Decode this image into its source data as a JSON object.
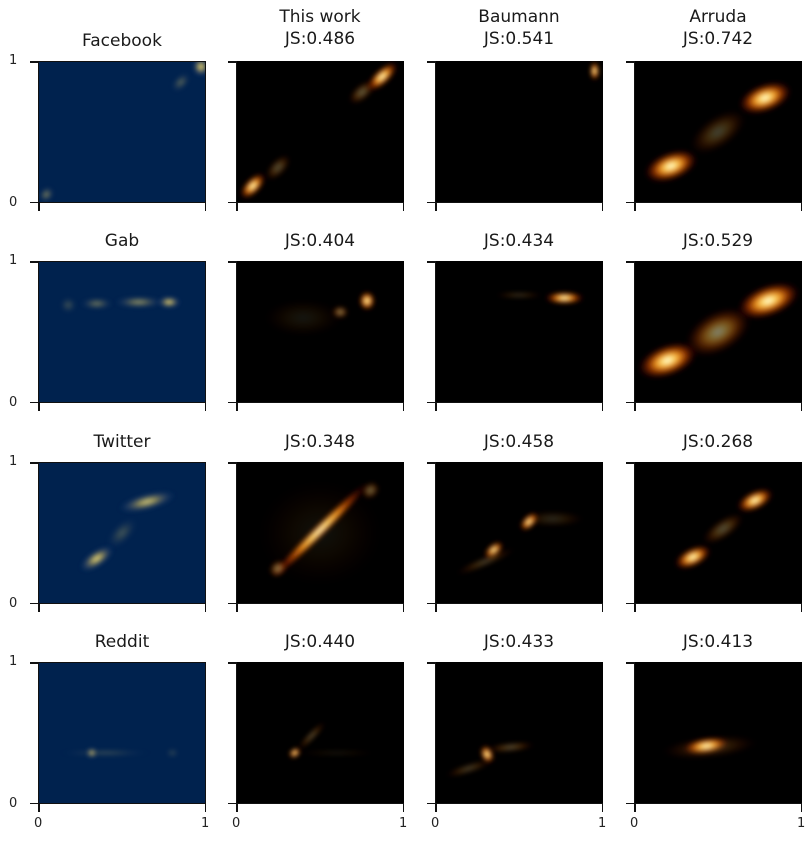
{
  "chart_data": [
    {
      "type": "heatmap",
      "row": "Facebook",
      "model": "data",
      "title": "Facebook",
      "title2": "",
      "colormap": "cividis",
      "blobs": [
        [
          0.97,
          0.96,
          0.05,
          0.06,
          0.0,
          1.0
        ],
        [
          0.85,
          0.85,
          0.07,
          0.04,
          0.8,
          0.35
        ],
        [
          0.05,
          0.06,
          0.05,
          0.04,
          0.8,
          0.5
        ]
      ]
    },
    {
      "type": "heatmap",
      "row": "Facebook",
      "model": "This work",
      "title": "This work",
      "title2": "JS:0.486",
      "colormap": "afmhot",
      "blobs": [
        [
          0.87,
          0.89,
          0.12,
          0.05,
          0.75,
          1.0
        ],
        [
          0.1,
          0.12,
          0.1,
          0.05,
          0.8,
          1.0
        ],
        [
          0.75,
          0.78,
          0.1,
          0.05,
          0.7,
          0.35
        ],
        [
          0.25,
          0.25,
          0.1,
          0.05,
          0.8,
          0.3
        ]
      ]
    },
    {
      "type": "heatmap",
      "row": "Facebook",
      "model": "Baumann",
      "title": "Baumann",
      "title2": "JS:0.541",
      "colormap": "afmhot",
      "blobs": [
        [
          0.95,
          0.93,
          0.03,
          0.06,
          0.0,
          1.0
        ]
      ]
    },
    {
      "type": "heatmap",
      "row": "Facebook",
      "model": "Arruda",
      "title": "Arruda",
      "title2": "JS:0.742",
      "colormap": "afmhot",
      "blobs": [
        [
          0.22,
          0.26,
          0.17,
          0.09,
          0.35,
          1.0
        ],
        [
          0.78,
          0.74,
          0.17,
          0.09,
          0.35,
          1.0
        ],
        [
          0.5,
          0.5,
          0.2,
          0.1,
          0.6,
          0.25
        ]
      ]
    },
    {
      "type": "heatmap",
      "row": "Gab",
      "model": "data",
      "title": "Gab",
      "title2": "",
      "colormap": "cividis",
      "blobs": [
        [
          0.78,
          0.71,
          0.07,
          0.035,
          0.0,
          1.0
        ],
        [
          0.6,
          0.71,
          0.15,
          0.035,
          0.0,
          0.6
        ],
        [
          0.35,
          0.7,
          0.1,
          0.035,
          0.0,
          0.45
        ],
        [
          0.18,
          0.69,
          0.05,
          0.05,
          0.0,
          0.25
        ]
      ]
    },
    {
      "type": "heatmap",
      "row": "Gab",
      "model": "This work",
      "title": "This work",
      "title2": "JS:0.404",
      "colormap": "afmhot",
      "blobs": [
        [
          0.78,
          0.72,
          0.05,
          0.06,
          0.0,
          1.0
        ],
        [
          0.62,
          0.64,
          0.05,
          0.04,
          0.0,
          0.5
        ],
        [
          0.4,
          0.6,
          0.25,
          0.12,
          0.0,
          0.08
        ]
      ]
    },
    {
      "type": "heatmap",
      "row": "Gab",
      "model": "Baumann",
      "title": "Baumann",
      "title2": "JS:0.434",
      "colormap": "afmhot",
      "blobs": [
        [
          0.77,
          0.74,
          0.12,
          0.04,
          0.0,
          1.0
        ],
        [
          0.5,
          0.76,
          0.15,
          0.02,
          0.0,
          0.2
        ]
      ]
    },
    {
      "type": "heatmap",
      "row": "Gab",
      "model": "Arruda",
      "title": "Arruda",
      "title2": "JS:0.529",
      "colormap": "afmhot",
      "blobs": [
        [
          0.2,
          0.3,
          0.19,
          0.1,
          0.35,
          1.0
        ],
        [
          0.8,
          0.72,
          0.2,
          0.1,
          0.35,
          1.0
        ],
        [
          0.5,
          0.5,
          0.22,
          0.13,
          0.5,
          0.5
        ]
      ]
    },
    {
      "type": "heatmap",
      "row": "Twitter",
      "model": "data",
      "title": "Twitter",
      "title2": "",
      "colormap": "cividis",
      "blobs": [
        [
          0.35,
          0.32,
          0.12,
          0.05,
          0.6,
          0.95
        ],
        [
          0.65,
          0.72,
          0.18,
          0.05,
          0.25,
          0.85
        ],
        [
          0.5,
          0.5,
          0.12,
          0.06,
          0.8,
          0.25
        ]
      ]
    },
    {
      "type": "heatmap",
      "row": "Twitter",
      "model": "This work",
      "title": "This work",
      "title2": "JS:0.348",
      "colormap": "afmhot",
      "blobs": [
        [
          0.5,
          0.52,
          0.42,
          0.04,
          0.78,
          1.0
        ],
        [
          0.25,
          0.25,
          0.06,
          0.05,
          0.7,
          0.5
        ],
        [
          0.8,
          0.8,
          0.06,
          0.05,
          0.7,
          0.4
        ],
        [
          0.5,
          0.5,
          0.4,
          0.35,
          0.0,
          0.06
        ]
      ]
    },
    {
      "type": "heatmap",
      "row": "Twitter",
      "model": "Baumann",
      "title": "Baumann",
      "title2": "JS:0.458",
      "colormap": "afmhot",
      "blobs": [
        [
          0.56,
          0.58,
          0.07,
          0.04,
          0.78,
          1.0
        ],
        [
          0.35,
          0.38,
          0.07,
          0.04,
          0.7,
          0.95
        ],
        [
          0.3,
          0.3,
          0.2,
          0.03,
          0.4,
          0.25
        ],
        [
          0.7,
          0.6,
          0.2,
          0.05,
          0.0,
          0.15
        ]
      ]
    },
    {
      "type": "heatmap",
      "row": "Twitter",
      "model": "Arruda",
      "title": "Arruda",
      "title2": "JS:0.268",
      "colormap": "afmhot",
      "blobs": [
        [
          0.35,
          0.33,
          0.12,
          0.06,
          0.45,
          1.0
        ],
        [
          0.72,
          0.73,
          0.12,
          0.06,
          0.45,
          1.0
        ],
        [
          0.53,
          0.53,
          0.15,
          0.06,
          0.6,
          0.3
        ]
      ]
    },
    {
      "type": "heatmap",
      "row": "Reddit",
      "model": "data",
      "title": "Reddit",
      "title2": "",
      "colormap": "cividis",
      "blobs": [
        [
          0.32,
          0.36,
          0.03,
          0.03,
          0.0,
          1.0
        ],
        [
          0.4,
          0.36,
          0.28,
          0.02,
          0.0,
          0.25
        ],
        [
          0.8,
          0.36,
          0.04,
          0.03,
          0.0,
          0.2
        ]
      ]
    },
    {
      "type": "heatmap",
      "row": "Reddit",
      "model": "This work",
      "title": "This work",
      "title2": "JS:0.440",
      "colormap": "afmhot",
      "blobs": [
        [
          0.35,
          0.36,
          0.04,
          0.03,
          0.6,
          1.0
        ],
        [
          0.45,
          0.48,
          0.12,
          0.025,
          0.8,
          0.3
        ],
        [
          0.6,
          0.36,
          0.25,
          0.02,
          0.0,
          0.08
        ]
      ]
    },
    {
      "type": "heatmap",
      "row": "Reddit",
      "model": "Baumann",
      "title": "Baumann",
      "title2": "JS:0.433",
      "colormap": "afmhot",
      "blobs": [
        [
          0.31,
          0.35,
          0.04,
          0.06,
          0.4,
          1.0
        ],
        [
          0.45,
          0.4,
          0.15,
          0.03,
          0.1,
          0.3
        ],
        [
          0.2,
          0.25,
          0.15,
          0.03,
          0.3,
          0.25
        ]
      ]
    },
    {
      "type": "heatmap",
      "row": "Reddit",
      "model": "Arruda",
      "title": "Arruda",
      "title2": "JS:0.413",
      "colormap": "afmhot",
      "blobs": [
        [
          0.43,
          0.41,
          0.14,
          0.05,
          0.15,
          1.0
        ],
        [
          0.45,
          0.4,
          0.3,
          0.07,
          0.1,
          0.2
        ]
      ]
    }
  ],
  "axes": {
    "x_ticks": [
      "0",
      "1"
    ],
    "y_ticks": [
      "0",
      "1"
    ],
    "xlim": [
      0,
      1
    ],
    "ylim": [
      0,
      1
    ]
  }
}
